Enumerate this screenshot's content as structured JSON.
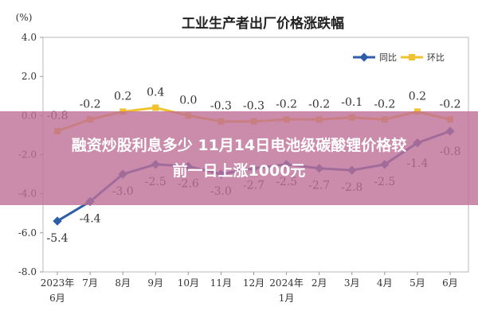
{
  "y_unit": "(%)",
  "chart_data": {
    "type": "line",
    "title": "工业生产者出厂价格涨跌幅",
    "xlabel": "",
    "ylabel": "(%)",
    "ylim": [
      -8.0,
      4.0
    ],
    "yticks": [
      "4.0",
      "2.0",
      "0.0",
      "-2.0",
      "-4.0",
      "-6.0",
      "-8.0"
    ],
    "ytick_values": [
      4,
      2,
      0,
      -2,
      -4,
      -6,
      -8
    ],
    "grid": false,
    "legend": "top-right",
    "categories": [
      [
        "2023年",
        "6月"
      ],
      [
        "7月"
      ],
      [
        "8月"
      ],
      [
        "9月"
      ],
      [
        "10月"
      ],
      [
        "11月"
      ],
      [
        "12月"
      ],
      [
        "2024年",
        "1月"
      ],
      [
        "2月"
      ],
      [
        "3月"
      ],
      [
        "4月"
      ],
      [
        "5月"
      ],
      [
        "6月"
      ]
    ],
    "series": [
      {
        "name": "同比",
        "color": "#2e5ea8",
        "values": [
          -5.4,
          -4.4,
          -3.0,
          -2.5,
          -2.6,
          -3.0,
          -2.7,
          -2.5,
          -2.7,
          -2.8,
          -2.5,
          -1.4,
          -0.8
        ],
        "labels": [
          "-5.4",
          "-4.4",
          "-3.0",
          "-2.5",
          "-2.6",
          "-3.0",
          "-2.7",
          "-2.5",
          "-2.7",
          "-2.8",
          "-2.5",
          "-1.4",
          "-0.8"
        ]
      },
      {
        "name": "环比",
        "color": "#f2c12e",
        "values": [
          -0.8,
          -0.2,
          0.2,
          0.4,
          0.0,
          -0.3,
          -0.3,
          -0.2,
          -0.2,
          -0.1,
          -0.2,
          0.2,
          -0.2
        ],
        "labels": [
          "-0.8",
          "-0.2",
          "0.2",
          "0.4",
          "0.0",
          "-0.3",
          "-0.3",
          "-0.2",
          "-0.2",
          "-0.1",
          "-0.2",
          "0.2",
          "-0.2"
        ]
      }
    ]
  },
  "overlay": {
    "line1": "融资炒股利息多少 11月14日电池级碳酸锂价格较",
    "line2": "前一日上涨1000元"
  }
}
